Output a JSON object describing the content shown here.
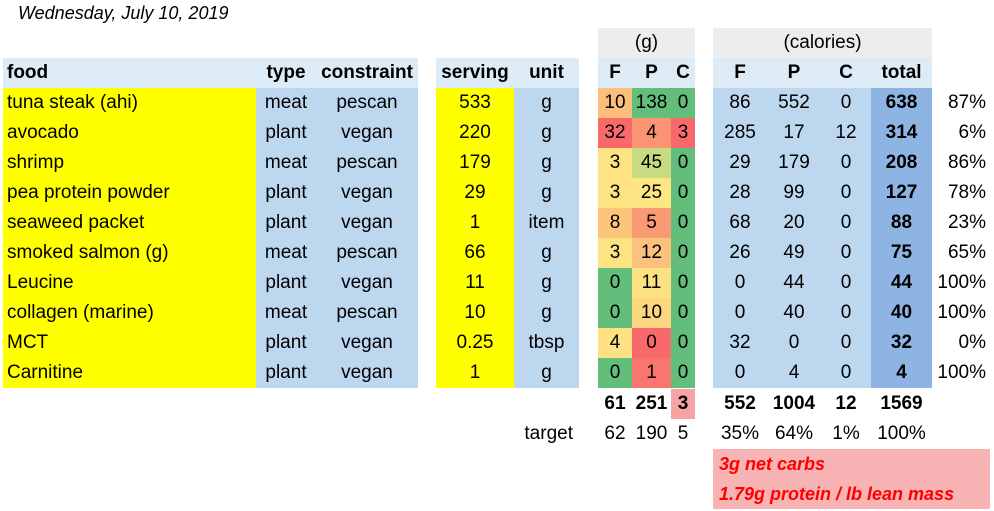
{
  "date": "Wednesday, July 10, 2019",
  "group_headers": {
    "grams": "(g)",
    "calories": "(calories)"
  },
  "columns": {
    "food": "food",
    "type": "type",
    "constraint": "constraint",
    "serving": "serving",
    "unit": "unit",
    "g_f": "F",
    "g_p": "P",
    "g_c": "C",
    "cal_f": "F",
    "cal_p": "P",
    "cal_c": "C",
    "cal_total": "total"
  },
  "rows": [
    {
      "food": "tuna steak (ahi)",
      "type": "meat",
      "constraint": "pescan",
      "serving": "533",
      "unit": "g",
      "gf": "10",
      "gp": "138",
      "gc": "0",
      "cf": "86",
      "cp": "552",
      "cc": "0",
      "total": "638",
      "pct": "87%",
      "gf_color": "#fcbf7b",
      "gp_color": "#63be7b",
      "gc_color": "#63be7b"
    },
    {
      "food": "avocado",
      "type": "plant",
      "constraint": "vegan",
      "serving": "220",
      "unit": "g",
      "gf": "32",
      "gp": "4",
      "gc": "3",
      "cf": "285",
      "cp": "17",
      "cc": "12",
      "total": "314",
      "pct": "6%",
      "gf_color": "#f8696b",
      "gp_color": "#fa9473",
      "gc_color": "#f8696b"
    },
    {
      "food": "shrimp",
      "type": "meat",
      "constraint": "pescan",
      "serving": "179",
      "unit": "g",
      "gf": "3",
      "gp": "45",
      "gc": "0",
      "cf": "29",
      "cp": "179",
      "cc": "0",
      "total": "208",
      "pct": "86%",
      "gf_color": "#fee382",
      "gp_color": "#c7db81",
      "gc_color": "#63be7b"
    },
    {
      "food": "pea protein powder",
      "type": "plant",
      "constraint": "vegan",
      "serving": "29",
      "unit": "g",
      "gf": "3",
      "gp": "25",
      "gc": "0",
      "cf": "28",
      "cp": "99",
      "cc": "0",
      "total": "127",
      "pct": "78%",
      "gf_color": "#fee382",
      "gp_color": "#fee683",
      "gc_color": "#63be7b"
    },
    {
      "food": "seaweed packet",
      "type": "plant",
      "constraint": "vegan",
      "serving": "1",
      "unit": "item",
      "gf": "8",
      "gp": "5",
      "gc": "0",
      "cf": "68",
      "cp": "20",
      "cc": "0",
      "total": "88",
      "pct": "23%",
      "gf_color": "#fdc57c",
      "gp_color": "#fa9a74",
      "gc_color": "#63be7b"
    },
    {
      "food": "smoked salmon (g)",
      "type": "meat",
      "constraint": "pescan",
      "serving": "66",
      "unit": "g",
      "gf": "3",
      "gp": "12",
      "gc": "0",
      "cf": "26",
      "cp": "49",
      "cc": "0",
      "total": "75",
      "pct": "65%",
      "gf_color": "#fee382",
      "gp_color": "#fcc17c",
      "gc_color": "#63be7b"
    },
    {
      "food": "Leucine",
      "type": "plant",
      "constraint": "vegan",
      "serving": "11",
      "unit": "g",
      "gf": "0",
      "gp": "11",
      "gc": "0",
      "cf": "0",
      "cp": "44",
      "cc": "0",
      "total": "44",
      "pct": "100%",
      "gf_color": "#63be7b",
      "gp_color": "#fde283",
      "gc_color": "#63be7b"
    },
    {
      "food": "collagen (marine)",
      "type": "meat",
      "constraint": "pescan",
      "serving": "10",
      "unit": "g",
      "gf": "0",
      "gp": "10",
      "gc": "0",
      "cf": "0",
      "cp": "40",
      "cc": "0",
      "total": "40",
      "pct": "100%",
      "gf_color": "#63be7b",
      "gp_color": "#fdd680",
      "gc_color": "#63be7b"
    },
    {
      "food": "MCT",
      "type": "plant",
      "constraint": "vegan",
      "serving": "0.25",
      "unit": "tbsp",
      "gf": "4",
      "gp": "0",
      "gc": "0",
      "cf": "32",
      "cp": "0",
      "cc": "0",
      "total": "32",
      "pct": "0%",
      "gf_color": "#fee182",
      "gp_color": "#f8696b",
      "gc_color": "#63be7b"
    },
    {
      "food": "Carnitine",
      "type": "plant",
      "constraint": "vegan",
      "serving": "1",
      "unit": "g",
      "gf": "0",
      "gp": "1",
      "gc": "0",
      "cf": "0",
      "cp": "4",
      "cc": "0",
      "total": "4",
      "pct": "100%",
      "gf_color": "#63be7b",
      "gp_color": "#f8766e",
      "gc_color": "#63be7b"
    }
  ],
  "totals": {
    "gf": "61",
    "gp": "251",
    "gc": "3",
    "cf": "552",
    "cp": "1004",
    "cc": "12",
    "total": "1569",
    "gc_color": "#f8a3a3"
  },
  "target": {
    "label": "target",
    "gf": "62",
    "gp": "190",
    "gc": "5",
    "cf": "35%",
    "cp": "64%",
    "cc": "1%",
    "total": "100%"
  },
  "notes": {
    "net_carbs": "3g net carbs",
    "protein_ratio": "1.79g protein / lb lean mass"
  },
  "colors": {
    "food_fill": "#ffff00",
    "type_fill": "#bdd7ee",
    "header_fill": "#ddebf7",
    "total_fill": "#8db4e2",
    "note_fill": "#f8b4b4",
    "note_text": "#ff0000"
  }
}
